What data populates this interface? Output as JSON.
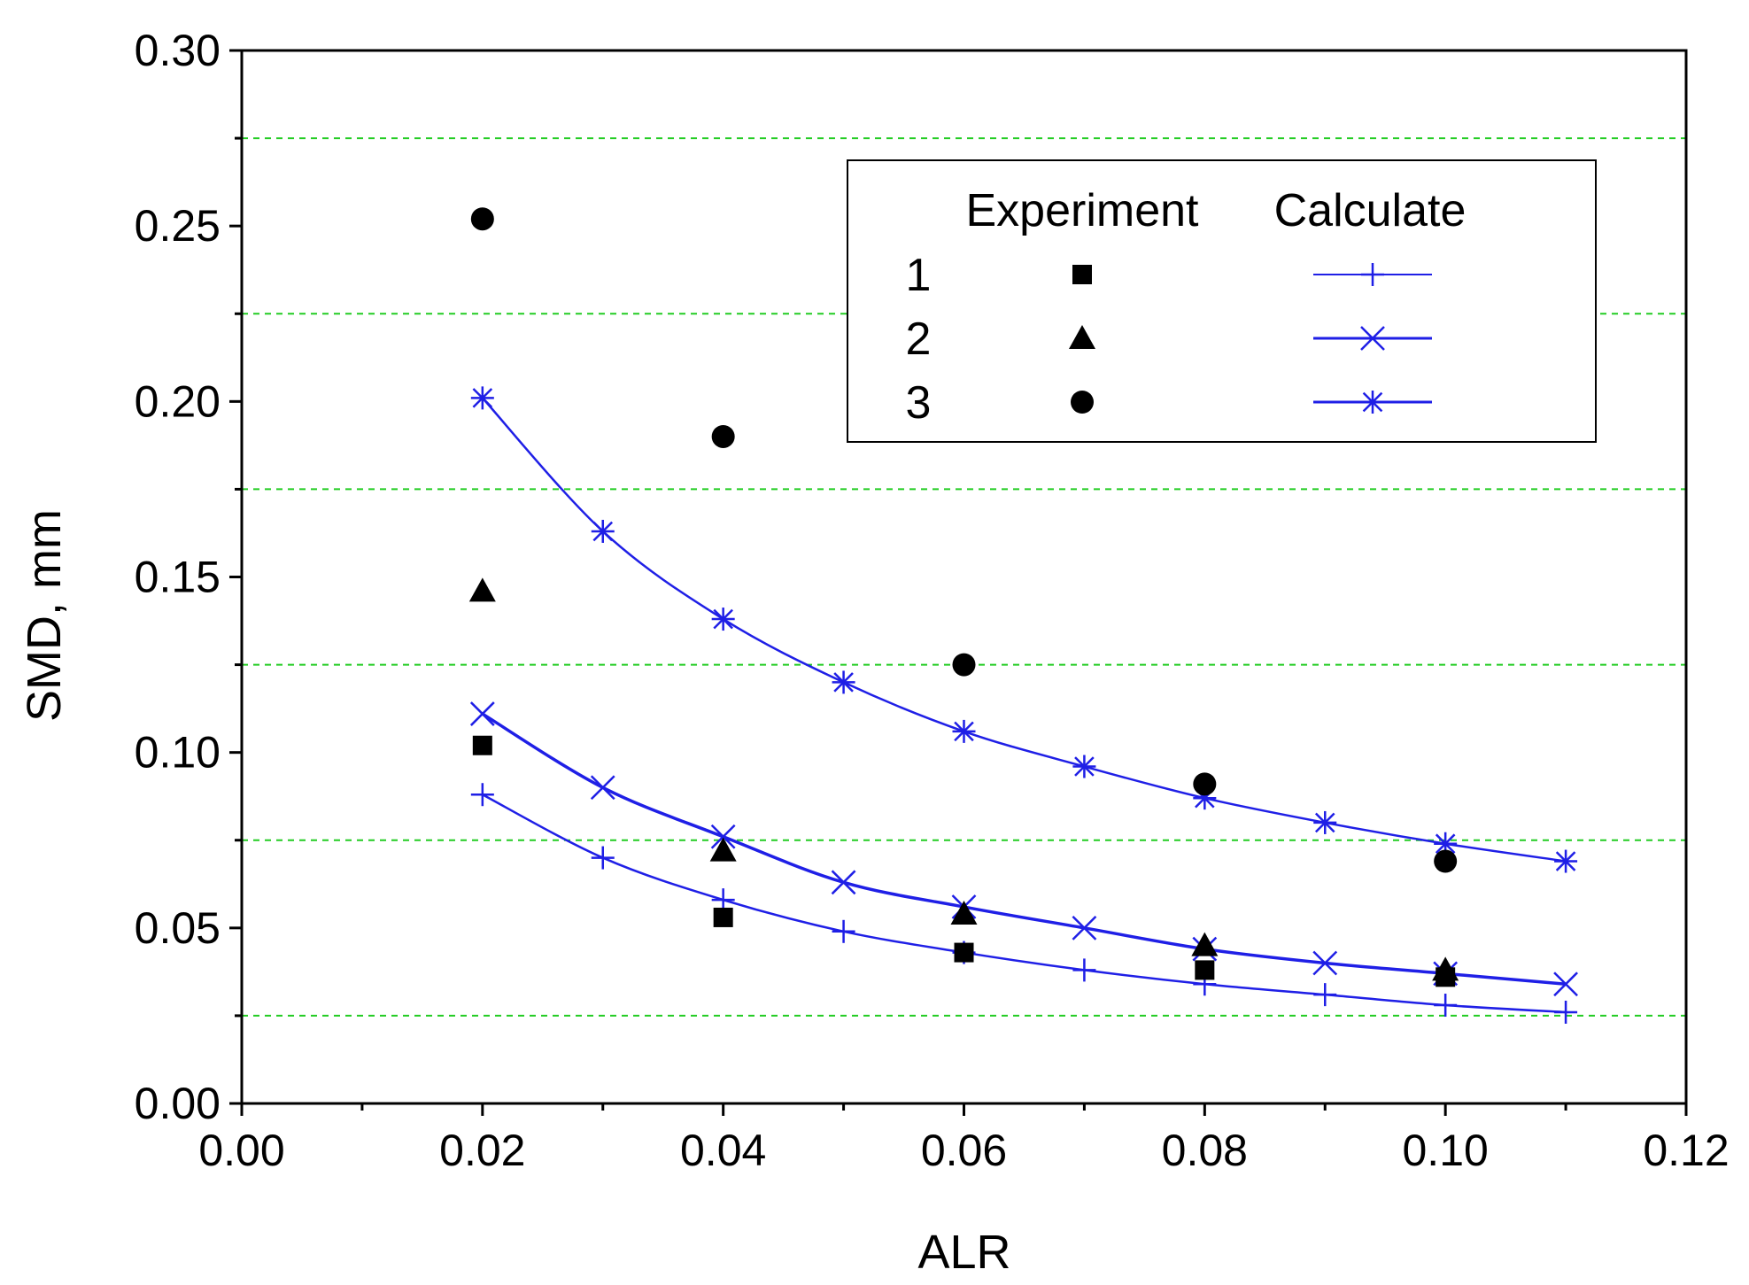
{
  "chart_data": {
    "type": "scatter",
    "xlabel": "ALR",
    "ylabel": "SMD, mm",
    "xlim": [
      0,
      0.12
    ],
    "ylim": [
      0,
      0.3
    ],
    "x_ticks": [
      "0.00",
      "0.02",
      "0.04",
      "0.06",
      "0.08",
      "0.10",
      "0.12"
    ],
    "y_ticks": [
      "0.00",
      "0.05",
      "0.10",
      "0.15",
      "0.20",
      "0.25",
      "0.30"
    ],
    "gridlines_y": [
      0.025,
      0.075,
      0.125,
      0.175,
      0.225,
      0.275
    ],
    "legend": {
      "placement": "top-right",
      "experiment_header": "Experiment",
      "calculate_header": "Calculate",
      "rows": [
        {
          "label": "1",
          "marker": "square",
          "line_marker": "plus"
        },
        {
          "label": "2",
          "marker": "triangle",
          "line_marker": "x"
        },
        {
          "label": "3",
          "marker": "circle",
          "line_marker": "asterisk"
        }
      ]
    },
    "experiment_series": [
      {
        "name": "1",
        "marker": "square",
        "x": [
          0.02,
          0.04,
          0.06,
          0.08,
          0.1
        ],
        "y": [
          0.102,
          0.053,
          0.043,
          0.038,
          0.036
        ]
      },
      {
        "name": "2",
        "marker": "triangle",
        "x": [
          0.02,
          0.04,
          0.06,
          0.08,
          0.1
        ],
        "y": [
          0.146,
          0.072,
          0.054,
          0.045,
          0.038
        ]
      },
      {
        "name": "3",
        "marker": "circle",
        "x": [
          0.02,
          0.04,
          0.06,
          0.08,
          0.1
        ],
        "y": [
          0.252,
          0.19,
          0.125,
          0.091,
          0.069
        ]
      }
    ],
    "calculated_series": [
      {
        "name": "1",
        "marker": "plus",
        "x": [
          0.02,
          0.03,
          0.04,
          0.05,
          0.06,
          0.07,
          0.08,
          0.09,
          0.1,
          0.11
        ],
        "y": [
          0.088,
          0.07,
          0.058,
          0.049,
          0.043,
          0.038,
          0.034,
          0.031,
          0.028,
          0.026
        ]
      },
      {
        "name": "2",
        "marker": "x",
        "x": [
          0.02,
          0.03,
          0.04,
          0.05,
          0.06,
          0.07,
          0.08,
          0.09,
          0.1,
          0.11
        ],
        "y": [
          0.111,
          0.09,
          0.076,
          0.063,
          0.056,
          0.05,
          0.044,
          0.04,
          0.037,
          0.034
        ]
      },
      {
        "name": "3",
        "marker": "asterisk",
        "x": [
          0.02,
          0.03,
          0.04,
          0.05,
          0.06,
          0.07,
          0.08,
          0.09,
          0.1,
          0.11
        ],
        "y": [
          0.201,
          0.163,
          0.138,
          0.12,
          0.106,
          0.096,
          0.087,
          0.08,
          0.074,
          0.069
        ]
      }
    ]
  },
  "colors": {
    "calc_line": "#1f1fe6",
    "grid": "#22cc22",
    "axis": "#000000",
    "marker": "#000000"
  }
}
